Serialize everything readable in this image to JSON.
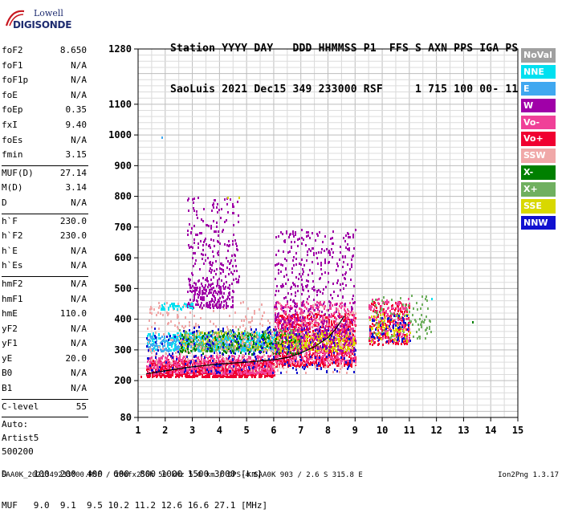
{
  "logo": {
    "line1": "Lowell",
    "line2": "DIGISONDE"
  },
  "header": {
    "line1": "Station YYYY DAY   DDD HHMMSS P1  FFS S AXN PPS IGA PS",
    "line2": "SaoLuis 2021 Dec15 349 233000 RSF     1 715 100 00- 11"
  },
  "params": {
    "group1": [
      {
        "name": "foF2",
        "value": "8.650"
      },
      {
        "name": "foF1",
        "value": "N/A"
      },
      {
        "name": "foF1p",
        "value": "N/A"
      },
      {
        "name": "foE",
        "value": "N/A"
      },
      {
        "name": "foEp",
        "value": "0.35"
      },
      {
        "name": "fxI",
        "value": "9.40"
      },
      {
        "name": "foEs",
        "value": "N/A"
      },
      {
        "name": "fmin",
        "value": "3.15"
      }
    ],
    "group2": [
      {
        "name": "MUF(D)",
        "value": "27.14"
      },
      {
        "name": "M(D)",
        "value": "3.14"
      },
      {
        "name": "D",
        "value": "N/A"
      }
    ],
    "group3": [
      {
        "name": "h`F",
        "value": "230.0"
      },
      {
        "name": "h`F2",
        "value": "230.0"
      },
      {
        "name": "h`E",
        "value": "N/A"
      },
      {
        "name": "h`Es",
        "value": "N/A"
      }
    ],
    "group4": [
      {
        "name": "hmF2",
        "value": "N/A"
      },
      {
        "name": "hmF1",
        "value": "N/A"
      },
      {
        "name": "hmE",
        "value": "110.0"
      },
      {
        "name": "yF2",
        "value": "N/A"
      },
      {
        "name": "yF1",
        "value": "N/A"
      },
      {
        "name": "yE",
        "value": "20.0"
      },
      {
        "name": "B0",
        "value": "N/A"
      },
      {
        "name": "B1",
        "value": "N/A"
      }
    ],
    "group5": [
      {
        "name": "C-level",
        "value": "55"
      }
    ],
    "auto": [
      "Auto:",
      "Artist5",
      "500200"
    ]
  },
  "legend": [
    {
      "label": "NoVal",
      "color": "#a0a0a0"
    },
    {
      "label": "NNE",
      "color": "#00e0f0"
    },
    {
      "label": "E",
      "color": "#40a8f0"
    },
    {
      "label": "W",
      "color": "#a000a8"
    },
    {
      "label": "Vo-",
      "color": "#f04098"
    },
    {
      "label": "Vo+",
      "color": "#f00030"
    },
    {
      "label": "SSW",
      "color": "#f0a8a8"
    },
    {
      "label": "X-",
      "color": "#008000"
    },
    {
      "label": "X+",
      "color": "#70b060"
    },
    {
      "label": "SSE",
      "color": "#d8d800"
    },
    {
      "label": "NNW",
      "color": "#1010d0"
    }
  ],
  "footer": {
    "line1": "D     100  200  400  600  800 1000 1500 3000 [km]",
    "line2": "MUF   9.0  9.1  9.5 10.2 11.2 12.6 16.6 27.1 [MHz]",
    "bottom": "SAA0K_2021349233000.RSF / 280fx256h 50 kHz 5.0 km / DPS-4 SAA0K 903 / 2.6 S 315.8 E",
    "version": "Ion2Png 1.3.17"
  },
  "chart_data": {
    "type": "scatter",
    "title": "",
    "xlabel": "",
    "ylabel": "",
    "xlim": [
      1,
      15
    ],
    "ylim": [
      80,
      1280
    ],
    "x_ticks": [
      "1",
      "2",
      "3",
      "4",
      "5",
      "6",
      "7",
      "8",
      "9",
      "10",
      "11",
      "12",
      "13",
      "14",
      "15"
    ],
    "y_ticks": [
      {
        "v": 80,
        "label": "80"
      },
      {
        "v": 200,
        "label": "200"
      },
      {
        "v": 300,
        "label": "300"
      },
      {
        "v": 400,
        "label": "400"
      },
      {
        "v": 500,
        "label": "500"
      },
      {
        "v": 600,
        "label": "600"
      },
      {
        "v": 700,
        "label": "700"
      },
      {
        "v": 800,
        "label": "800"
      },
      {
        "v": 900,
        "label": "900"
      },
      {
        "v": 1000,
        "label": "1000"
      },
      {
        "v": 1100,
        "label": "1100"
      },
      {
        "v": 1280,
        "label": "1280"
      }
    ],
    "grid": true,
    "trace": {
      "name": "",
      "color": "#000000",
      "points": [
        [
          1.3,
          222
        ],
        [
          2.0,
          232
        ],
        [
          3.0,
          245
        ],
        [
          4.0,
          254
        ],
        [
          5.0,
          260
        ],
        [
          6.0,
          268
        ],
        [
          6.5,
          275
        ],
        [
          7.0,
          290
        ],
        [
          7.5,
          310
        ],
        [
          8.0,
          340
        ],
        [
          8.3,
          370
        ],
        [
          8.6,
          410
        ]
      ]
    },
    "clusters": [
      {
        "series": "Vo+",
        "x": [
          1.3,
          6.0
        ],
        "y": [
          215,
          270
        ],
        "n": 1000
      },
      {
        "series": "Vo-",
        "x": [
          1.3,
          6.0
        ],
        "y": [
          225,
          285
        ],
        "n": 500
      },
      {
        "series": "Vo+",
        "x": [
          6.0,
          9.0
        ],
        "y": [
          250,
          420
        ],
        "n": 900
      },
      {
        "series": "Vo-",
        "x": [
          6.0,
          9.0
        ],
        "y": [
          260,
          460
        ],
        "n": 600
      },
      {
        "series": "SSE",
        "x": [
          2.5,
          9.0
        ],
        "y": [
          300,
          360
        ],
        "n": 600
      },
      {
        "series": "NNE",
        "x": [
          1.3,
          6.0
        ],
        "y": [
          300,
          360
        ],
        "n": 350
      },
      {
        "series": "E",
        "x": [
          1.3,
          6.0
        ],
        "y": [
          300,
          350
        ],
        "n": 250
      },
      {
        "series": "X+",
        "x": [
          2.5,
          7.0
        ],
        "y": [
          300,
          370
        ],
        "n": 250
      },
      {
        "series": "X-",
        "x": [
          2.5,
          7.0
        ],
        "y": [
          290,
          360
        ],
        "n": 150
      },
      {
        "series": "SSW",
        "x": [
          1.3,
          9.0
        ],
        "y": [
          230,
          460
        ],
        "n": 400
      },
      {
        "series": "NNW",
        "x": [
          1.3,
          9.0
        ],
        "y": [
          230,
          380
        ],
        "n": 250
      },
      {
        "series": "W",
        "x": [
          6.0,
          9.0
        ],
        "y": [
          300,
          700
        ],
        "n": 450
      },
      {
        "series": "W",
        "x": [
          2.8,
          4.5
        ],
        "y": [
          440,
          520
        ],
        "n": 200
      },
      {
        "series": "W",
        "x": [
          2.8,
          4.7
        ],
        "y": [
          520,
          800
        ],
        "n": 200
      },
      {
        "series": "NNE",
        "x": [
          1.8,
          3.0
        ],
        "y": [
          435,
          455
        ],
        "n": 40
      },
      {
        "series": "Vo+",
        "x": [
          9.5,
          11.0
        ],
        "y": [
          320,
          460
        ],
        "n": 220
      },
      {
        "series": "Vo-",
        "x": [
          9.5,
          11.0
        ],
        "y": [
          330,
          470
        ],
        "n": 150
      },
      {
        "series": "X+",
        "x": [
          9.5,
          11.8
        ],
        "y": [
          340,
          480
        ],
        "n": 100
      },
      {
        "series": "SSE",
        "x": [
          9.5,
          11.0
        ],
        "y": [
          330,
          420
        ],
        "n": 60
      },
      {
        "series": "NNW",
        "x": [
          9.5,
          11.0
        ],
        "y": [
          330,
          420
        ],
        "n": 50
      }
    ],
    "isolated": [
      {
        "series": "E",
        "x": 1.85,
        "y": 995
      },
      {
        "series": "X-",
        "x": 13.3,
        "y": 395
      },
      {
        "series": "NNE",
        "x": 11.8,
        "y": 470
      },
      {
        "series": "SSE",
        "x": 4.7,
        "y": 800
      },
      {
        "series": "SSE",
        "x": 4.3,
        "y": 800
      },
      {
        "series": "Vo+",
        "x": 1.1,
        "y": 215
      }
    ]
  }
}
